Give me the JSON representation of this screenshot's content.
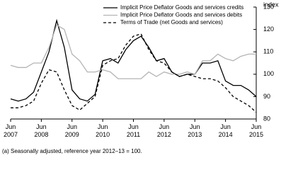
{
  "chart_data": {
    "type": "line",
    "y_label": "index",
    "footnote": "(a) Seasonally adjusted, reference year 2012–13 = 100.",
    "categories": [
      "Jun 2007",
      null,
      null,
      null,
      "Jun 2008",
      null,
      null,
      null,
      "Jun 2009",
      null,
      null,
      null,
      "Jun 2010",
      null,
      null,
      null,
      "Jun 2011",
      null,
      null,
      null,
      "Jun 2012",
      null,
      null,
      null,
      "Jun 2013",
      null,
      null,
      null,
      "Jun 2014",
      null,
      null,
      null,
      "Jun 2015"
    ],
    "series": [
      {
        "name": "Implicit Price Deflator Goods and services credits",
        "color": "#000000",
        "dash": "none",
        "values": [
          89,
          88,
          89,
          92,
          101,
          110,
          124,
          112,
          93,
          89,
          88,
          91,
          106,
          107,
          105,
          111,
          115,
          117,
          112,
          106,
          107,
          101,
          99,
          100,
          100,
          105,
          105,
          106,
          97,
          95,
          95,
          93,
          90
        ]
      },
      {
        "name": "Implicit Price Deflator Goods and services debits",
        "color": "#b4b4b4",
        "dash": "none",
        "values": [
          104,
          103,
          103,
          105,
          105,
          112,
          122,
          120,
          109,
          106,
          101,
          101,
          102,
          101,
          98,
          98,
          98,
          98,
          101,
          99,
          101,
          100,
          100,
          101,
          100,
          106,
          106,
          109,
          107,
          106,
          108,
          109,
          109
        ]
      },
      {
        "name": "Terms of Trade (net Goods and services)",
        "color": "#000000",
        "dash": "4 3",
        "values": [
          85,
          85,
          86,
          88,
          96,
          102,
          101,
          93,
          86,
          84,
          87,
          90,
          104,
          106,
          107,
          113,
          117,
          118,
          111,
          106,
          105,
          101,
          99,
          100,
          99,
          98,
          98,
          97,
          94,
          90,
          88,
          86,
          83
        ]
      }
    ],
    "ylim": [
      80,
      130
    ],
    "yticks": [
      80,
      90,
      100,
      110,
      120,
      130
    ]
  }
}
